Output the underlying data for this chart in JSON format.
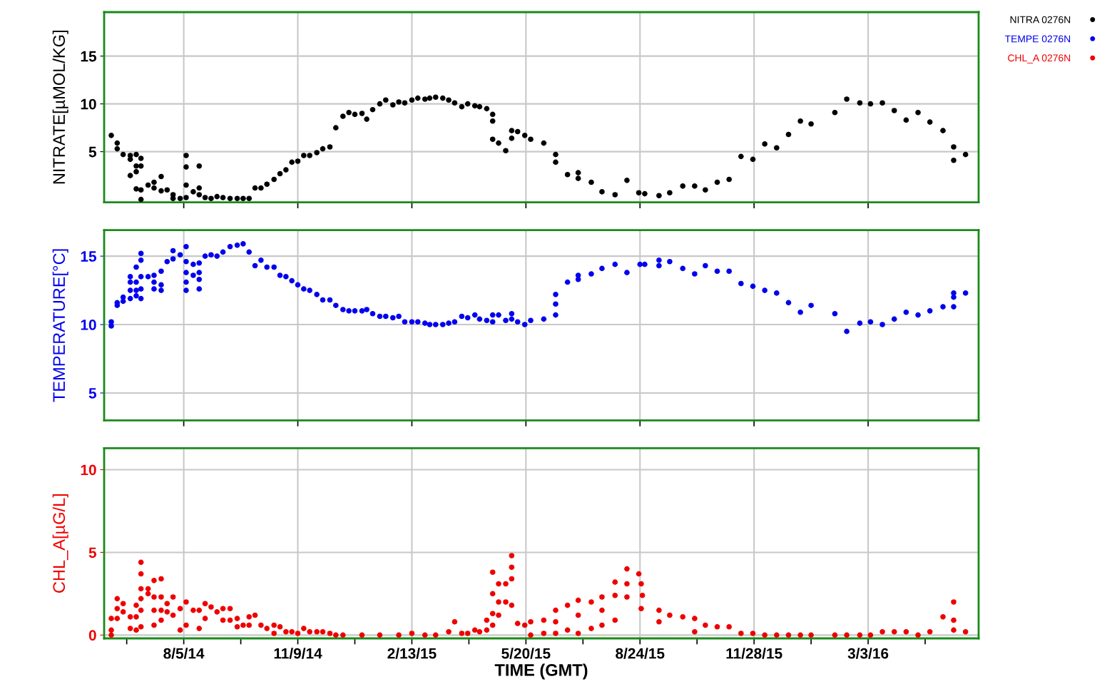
{
  "chart_data": [
    {
      "type": "scatter",
      "ylabel": "NITRATE[µMOL/KG]",
      "ylim": [
        -0.3,
        19.6
      ],
      "yticks": [
        5,
        10,
        15
      ],
      "xlim": [
        "2014-05-30",
        "2016-06-04"
      ],
      "xticks": [
        {
          "value": "2014-08-05",
          "label": null
        },
        {
          "value": "2014-11-09",
          "label": null
        },
        {
          "value": "2015-02-13",
          "label": null
        },
        {
          "value": "2015-05-20",
          "label": null
        },
        {
          "value": "2015-08-24",
          "label": null
        },
        {
          "value": "2015-11-28",
          "label": null
        },
        {
          "value": "2016-03-03",
          "label": null
        }
      ],
      "tick_labels": "y",
      "grid": true,
      "legend": "top right",
      "marker": "circle",
      "series": [
        {
          "name": "NITRA 0276N",
          "color": "#000000",
          "x": [
            "2014-06-05",
            "2014-06-10",
            "2014-06-10",
            "2014-06-15",
            "2014-06-21",
            "2014-06-21",
            "2014-06-21",
            "2014-06-26",
            "2014-06-26",
            "2014-06-26",
            "2014-06-26",
            "2014-06-30",
            "2014-06-30",
            "2014-06-30",
            "2014-06-30",
            "2014-07-06",
            "2014-07-11",
            "2014-07-11",
            "2014-07-17",
            "2014-07-17",
            "2014-07-22",
            "2014-07-27",
            "2014-07-27",
            "2014-08-02",
            "2014-08-07",
            "2014-08-07",
            "2014-08-07",
            "2014-08-07",
            "2014-08-13",
            "2014-08-18",
            "2014-08-18",
            "2014-08-18",
            "2014-08-23",
            "2014-08-28",
            "2014-09-02",
            "2014-09-07",
            "2014-09-13",
            "2014-09-19",
            "2014-09-24",
            "2014-09-29",
            "2014-10-04",
            "2014-10-09",
            "2014-10-14",
            "2014-10-20",
            "2014-10-25",
            "2014-10-30",
            "2014-11-04",
            "2014-11-09",
            "2014-11-14",
            "2014-11-19",
            "2014-11-25",
            "2014-11-30",
            "2014-12-06",
            "2014-12-11",
            "2014-12-17",
            "2014-12-22",
            "2014-12-27",
            "2015-01-02",
            "2015-01-06",
            "2015-01-11",
            "2015-01-17",
            "2015-01-22",
            "2015-01-28",
            "2015-02-02",
            "2015-02-07",
            "2015-02-13",
            "2015-02-18",
            "2015-02-24",
            "2015-02-28",
            "2015-03-05",
            "2015-03-11",
            "2015-03-16",
            "2015-03-21",
            "2015-03-27",
            "2015-04-01",
            "2015-04-07",
            "2015-04-11",
            "2015-04-17",
            "2015-04-22",
            "2015-04-22",
            "2015-04-22",
            "2015-04-27",
            "2015-05-03",
            "2015-05-08",
            "2015-05-08",
            "2015-05-13",
            "2015-05-19",
            "2015-05-24",
            "2015-06-04",
            "2015-06-14",
            "2015-06-14",
            "2015-06-24",
            "2015-07-03",
            "2015-07-03",
            "2015-07-14",
            "2015-07-23",
            "2015-08-03",
            "2015-08-13",
            "2015-08-23",
            "2015-08-28",
            "2015-09-09",
            "2015-09-18",
            "2015-09-29",
            "2015-10-09",
            "2015-10-18",
            "2015-10-28",
            "2015-11-07",
            "2015-11-17",
            "2015-11-27",
            "2015-12-07",
            "2015-12-17",
            "2015-12-27",
            "2016-01-06",
            "2016-01-15",
            "2016-02-04",
            "2016-02-14",
            "2016-02-25",
            "2016-03-05",
            "2016-03-15",
            "2016-03-25",
            "2016-04-04",
            "2016-04-14",
            "2016-04-24",
            "2016-05-05",
            "2016-05-14",
            "2016-05-14",
            "2016-05-24"
          ],
          "values": [
            6.7,
            5.9,
            5.3,
            4.7,
            4.6,
            4.2,
            2.5,
            4.7,
            3.5,
            2.9,
            1.1,
            4.3,
            3.5,
            1.0,
            0,
            1.5,
            1.8,
            1.2,
            2.4,
            0.9,
            1.0,
            0.5,
            0.1,
            0.1,
            4.6,
            3.4,
            1.5,
            0.2,
            0.8,
            3.5,
            1.2,
            0.5,
            0.2,
            0.1,
            0.3,
            0.2,
            0.1,
            0.1,
            0.1,
            0.1,
            1.2,
            1.2,
            1.6,
            2.1,
            2.7,
            3.1,
            3.9,
            4.0,
            4.6,
            4.6,
            4.9,
            5.3,
            5.5,
            7.5,
            8.7,
            9.1,
            8.9,
            9.0,
            8.4,
            9.4,
            10.0,
            10.4,
            9.9,
            10.2,
            10.1,
            10.4,
            10.6,
            10.5,
            10.6,
            10.7,
            10.6,
            10.4,
            10.1,
            9.7,
            10.0,
            9.8,
            9.7,
            9.5,
            8.9,
            8.2,
            6.3,
            5.9,
            5.1,
            7.2,
            6.4,
            7.1,
            6.7,
            6.3,
            5.9,
            4.7,
            3.9,
            2.6,
            2.8,
            2.2,
            1.8,
            0.8,
            0.5,
            2.0,
            0.7,
            0.6,
            0.4,
            0.7,
            1.4,
            1.4,
            1.0,
            1.8,
            2.1,
            4.5,
            4.2,
            5.8,
            5.4,
            6.8,
            8.2,
            7.9,
            9.1,
            10.5,
            10.1,
            10.0,
            10.1,
            9.3,
            8.3,
            9.1,
            8.1,
            7.2,
            5.5,
            4.1,
            4.7
          ]
        }
      ]
    },
    {
      "type": "scatter",
      "ylabel": "TEMPERATURE[°C]",
      "ylim": [
        3.0,
        16.9
      ],
      "yticks": [
        5,
        10,
        15
      ],
      "xlim": [
        "2014-05-30",
        "2016-06-04"
      ],
      "xticks": [
        {
          "value": "2014-08-05",
          "label": null
        },
        {
          "value": "2014-11-09",
          "label": null
        },
        {
          "value": "2015-02-13",
          "label": null
        },
        {
          "value": "2015-05-20",
          "label": null
        },
        {
          "value": "2015-08-24",
          "label": null
        },
        {
          "value": "2015-11-28",
          "label": null
        },
        {
          "value": "2016-03-03",
          "label": null
        }
      ],
      "tick_labels": "y",
      "grid": true,
      "legend": "top right",
      "marker": "circle",
      "series": [
        {
          "name": "TEMPE 0276N",
          "color": "#0000ee",
          "x": [
            "2014-06-05",
            "2014-06-05",
            "2014-06-10",
            "2014-06-10",
            "2014-06-15",
            "2014-06-15",
            "2014-06-21",
            "2014-06-21",
            "2014-06-21",
            "2014-06-21",
            "2014-06-26",
            "2014-06-26",
            "2014-06-26",
            "2014-06-26",
            "2014-06-30",
            "2014-06-30",
            "2014-06-30",
            "2014-06-30",
            "2014-06-30",
            "2014-07-06",
            "2014-07-11",
            "2014-07-11",
            "2014-07-11",
            "2014-07-17",
            "2014-07-17",
            "2014-07-17",
            "2014-07-22",
            "2014-07-27",
            "2014-07-27",
            "2014-08-02",
            "2014-08-07",
            "2014-08-07",
            "2014-08-07",
            "2014-08-07",
            "2014-08-07",
            "2014-08-13",
            "2014-08-13",
            "2014-08-18",
            "2014-08-18",
            "2014-08-18",
            "2014-08-18",
            "2014-08-23",
            "2014-08-28",
            "2014-09-02",
            "2014-09-07",
            "2014-09-13",
            "2014-09-19",
            "2014-09-24",
            "2014-09-29",
            "2014-10-04",
            "2014-10-09",
            "2014-10-14",
            "2014-10-20",
            "2014-10-25",
            "2014-10-30",
            "2014-11-04",
            "2014-11-09",
            "2014-11-14",
            "2014-11-19",
            "2014-11-25",
            "2014-11-30",
            "2014-12-06",
            "2014-12-11",
            "2014-12-17",
            "2014-12-22",
            "2014-12-27",
            "2015-01-02",
            "2015-01-06",
            "2015-01-11",
            "2015-01-17",
            "2015-01-22",
            "2015-01-28",
            "2015-02-02",
            "2015-02-07",
            "2015-02-13",
            "2015-02-18",
            "2015-02-24",
            "2015-02-28",
            "2015-03-05",
            "2015-03-11",
            "2015-03-16",
            "2015-03-21",
            "2015-03-27",
            "2015-04-01",
            "2015-04-07",
            "2015-04-11",
            "2015-04-17",
            "2015-04-22",
            "2015-04-22",
            "2015-04-27",
            "2015-05-03",
            "2015-05-08",
            "2015-05-08",
            "2015-05-13",
            "2015-05-19",
            "2015-05-24",
            "2015-06-04",
            "2015-06-14",
            "2015-06-14",
            "2015-06-14",
            "2015-06-24",
            "2015-07-03",
            "2015-07-03",
            "2015-07-14",
            "2015-07-23",
            "2015-08-03",
            "2015-08-13",
            "2015-08-24",
            "2015-08-28",
            "2015-09-09",
            "2015-09-09",
            "2015-09-18",
            "2015-09-29",
            "2015-10-09",
            "2015-10-18",
            "2015-10-28",
            "2015-11-07",
            "2015-11-17",
            "2015-11-27",
            "2015-12-07",
            "2015-12-17",
            "2015-12-27",
            "2016-01-06",
            "2016-01-15",
            "2016-02-04",
            "2016-02-14",
            "2016-02-25",
            "2016-03-05",
            "2016-03-15",
            "2016-03-25",
            "2016-04-04",
            "2016-04-14",
            "2016-04-24",
            "2016-05-05",
            "2016-05-14",
            "2016-05-14",
            "2016-05-14",
            "2016-05-24"
          ],
          "values": [
            10.2,
            9.9,
            11.4,
            11.6,
            12.0,
            11.7,
            13.5,
            13.1,
            12.5,
            11.9,
            14.2,
            13.1,
            12.5,
            12.1,
            15.2,
            14.7,
            13.5,
            12.6,
            11.9,
            13.5,
            13.6,
            13.1,
            12.6,
            13.9,
            12.9,
            12.5,
            14.6,
            15.4,
            14.8,
            15.1,
            15.7,
            14.6,
            13.8,
            13.1,
            12.5,
            14.4,
            13.6,
            14.5,
            13.8,
            13.3,
            12.6,
            15.0,
            15.1,
            15.0,
            15.3,
            15.7,
            15.8,
            15.9,
            15.3,
            14.3,
            14.7,
            14.2,
            14.2,
            13.6,
            13.5,
            13.2,
            12.9,
            12.6,
            12.5,
            12.2,
            11.8,
            11.8,
            11.4,
            11.1,
            11.0,
            11.0,
            11.0,
            11.1,
            10.8,
            10.6,
            10.6,
            10.5,
            10.6,
            10.2,
            10.2,
            10.2,
            10.1,
            10.0,
            10.0,
            10.0,
            10.1,
            10.2,
            10.6,
            10.5,
            10.7,
            10.4,
            10.3,
            10.7,
            10.2,
            10.7,
            10.3,
            10.8,
            10.4,
            10.2,
            10.0,
            10.3,
            10.4,
            12.2,
            11.5,
            10.7,
            13.1,
            13.6,
            13.3,
            13.7,
            14.1,
            14.4,
            13.8,
            14.4,
            14.4,
            14.7,
            14.3,
            14.6,
            14.1,
            13.7,
            14.3,
            13.9,
            13.9,
            13.0,
            12.8,
            12.5,
            12.3,
            11.6,
            10.9,
            11.4,
            10.8,
            9.5,
            10.1,
            10.2,
            10.0,
            10.4,
            10.9,
            10.7,
            11.0,
            11.3,
            12.3,
            12.0,
            11.3,
            12.3
          ]
        }
      ]
    },
    {
      "type": "scatter",
      "ylabel": "CHL_A[µG/L]",
      "xlabel": "TIME (GMT)",
      "ylim": [
        -0.2,
        11.3
      ],
      "yticks": [
        0,
        5,
        10
      ],
      "xlim": [
        "2014-05-30",
        "2016-06-04"
      ],
      "xticks": [
        {
          "value": "2014-06-18",
          "label": null
        },
        {
          "value": "2014-08-05",
          "label": "8/5/14"
        },
        {
          "value": "2014-09-22",
          "label": null
        },
        {
          "value": "2014-11-09",
          "label": "11/9/14"
        },
        {
          "value": "2014-12-27",
          "label": null
        },
        {
          "value": "2015-02-13",
          "label": "2/13/15"
        },
        {
          "value": "2015-04-02",
          "label": null
        },
        {
          "value": "2015-05-20",
          "label": "5/20/15"
        },
        {
          "value": "2015-07-07",
          "label": null
        },
        {
          "value": "2015-08-24",
          "label": "8/24/15"
        },
        {
          "value": "2015-10-11",
          "label": null
        },
        {
          "value": "2015-11-28",
          "label": "11/28/15"
        },
        {
          "value": "2016-01-15",
          "label": null
        },
        {
          "value": "2016-03-03",
          "label": "3/3/16"
        },
        {
          "value": "2016-04-20",
          "label": null
        }
      ],
      "grid": true,
      "legend": "top right",
      "marker": "circle",
      "series": [
        {
          "name": "CHL_A 0276N",
          "color": "#ee0000",
          "x": [
            "2014-06-05",
            "2014-06-05",
            "2014-06-05",
            "2014-06-10",
            "2014-06-10",
            "2014-06-10",
            "2014-06-15",
            "2014-06-15",
            "2014-06-21",
            "2014-06-21",
            "2014-06-26",
            "2014-06-26",
            "2014-06-26",
            "2014-06-30",
            "2014-06-30",
            "2014-06-30",
            "2014-06-30",
            "2014-06-30",
            "2014-06-30",
            "2014-07-06",
            "2014-07-06",
            "2014-07-11",
            "2014-07-11",
            "2014-07-11",
            "2014-07-11",
            "2014-07-17",
            "2014-07-17",
            "2014-07-17",
            "2014-07-17",
            "2014-07-22",
            "2014-07-22",
            "2014-07-27",
            "2014-07-27",
            "2014-08-02",
            "2014-08-02",
            "2014-08-07",
            "2014-08-07",
            "2014-08-13",
            "2014-08-18",
            "2014-08-18",
            "2014-08-23",
            "2014-08-23",
            "2014-08-28",
            "2014-09-02",
            "2014-09-07",
            "2014-09-07",
            "2014-09-13",
            "2014-09-13",
            "2014-09-19",
            "2014-09-19",
            "2014-09-24",
            "2014-09-29",
            "2014-09-29",
            "2014-10-04",
            "2014-10-09",
            "2014-10-14",
            "2014-10-20",
            "2014-10-20",
            "2014-10-25",
            "2014-10-30",
            "2014-11-04",
            "2014-11-09",
            "2014-11-14",
            "2014-11-19",
            "2014-11-25",
            "2014-11-30",
            "2014-12-06",
            "2014-12-11",
            "2014-12-17",
            "2015-01-02",
            "2015-01-17",
            "2015-02-02",
            "2015-02-13",
            "2015-02-24",
            "2015-03-05",
            "2015-03-16",
            "2015-03-21",
            "2015-03-27",
            "2015-04-01",
            "2015-04-07",
            "2015-04-11",
            "2015-04-17",
            "2015-04-17",
            "2015-04-22",
            "2015-04-22",
            "2015-04-22",
            "2015-04-22",
            "2015-04-27",
            "2015-04-27",
            "2015-04-27",
            "2015-05-03",
            "2015-05-03",
            "2015-05-08",
            "2015-05-08",
            "2015-05-08",
            "2015-05-08",
            "2015-05-13",
            "2015-05-19",
            "2015-05-24",
            "2015-05-24",
            "2015-06-04",
            "2015-06-04",
            "2015-06-14",
            "2015-06-14",
            "2015-06-14",
            "2015-06-24",
            "2015-06-24",
            "2015-07-03",
            "2015-07-03",
            "2015-07-03",
            "2015-07-14",
            "2015-07-14",
            "2015-07-23",
            "2015-07-23",
            "2015-07-23",
            "2015-08-03",
            "2015-08-03",
            "2015-08-03",
            "2015-08-13",
            "2015-08-13",
            "2015-08-13",
            "2015-08-23",
            "2015-08-25",
            "2015-08-26",
            "2015-08-25",
            "2015-09-09",
            "2015-09-09",
            "2015-09-18",
            "2015-09-29",
            "2015-10-09",
            "2015-10-09",
            "2015-10-18",
            "2015-10-28",
            "2015-11-07",
            "2015-11-17",
            "2015-11-27",
            "2015-12-07",
            "2015-12-17",
            "2015-12-27",
            "2016-01-06",
            "2016-01-15",
            "2016-02-04",
            "2016-02-14",
            "2016-02-25",
            "2016-03-05",
            "2016-03-15",
            "2016-03-25",
            "2016-04-04",
            "2016-04-14",
            "2016-04-24",
            "2016-05-05",
            "2016-05-14",
            "2016-05-14",
            "2016-05-14",
            "2016-05-24"
          ],
          "values": [
            1.0,
            0.3,
            0.0,
            2.2,
            1.6,
            1.0,
            1.9,
            1.4,
            1.1,
            0.4,
            1.8,
            1.1,
            0.3,
            4.4,
            3.7,
            2.8,
            2.2,
            1.5,
            0.5,
            2.8,
            2.5,
            3.3,
            2.3,
            1.5,
            0.6,
            3.4,
            2.3,
            1.5,
            0.9,
            1.9,
            1.4,
            2.3,
            1.2,
            1.6,
            0.3,
            2.0,
            0.6,
            1.5,
            1.5,
            0.4,
            1.9,
            1.0,
            1.7,
            1.4,
            1.6,
            0.9,
            1.6,
            0.9,
            1.0,
            0.5,
            0.6,
            1.1,
            0.6,
            1.2,
            0.6,
            0.4,
            0.6,
            0.1,
            0.5,
            0.2,
            0.2,
            0.1,
            0.4,
            0.2,
            0.2,
            0.2,
            0.1,
            0.0,
            0.0,
            0.0,
            0.0,
            0.0,
            0.1,
            0.0,
            0.0,
            0.2,
            0.8,
            0.1,
            0.1,
            0.3,
            0.2,
            0.9,
            0.3,
            3.8,
            2.5,
            1.3,
            0.6,
            3.1,
            2.0,
            1.2,
            3.1,
            2.0,
            4.8,
            4.1,
            3.4,
            1.8,
            0.7,
            0.6,
            0.8,
            0.0,
            0.9,
            0.1,
            1.5,
            0.8,
            0.1,
            1.8,
            0.3,
            2.1,
            1.2,
            0.1,
            2.0,
            0.4,
            2.3,
            1.5,
            0.6,
            3.2,
            2.4,
            0.9,
            4.0,
            3.1,
            2.3,
            3.7,
            3.1,
            2.4,
            1.6,
            1.5,
            0.8,
            1.2,
            1.1,
            1.0,
            0.2,
            0.6,
            0.5,
            0.5,
            0.1,
            0.1,
            0.0,
            0.0,
            0.0,
            0.0,
            0.0,
            0.0,
            0.0,
            0.0,
            0.0,
            0.2,
            0.2,
            0.2,
            0.0,
            0.2,
            1.1,
            2.0,
            0.9,
            0.3,
            0.2
          ]
        }
      ]
    }
  ]
}
